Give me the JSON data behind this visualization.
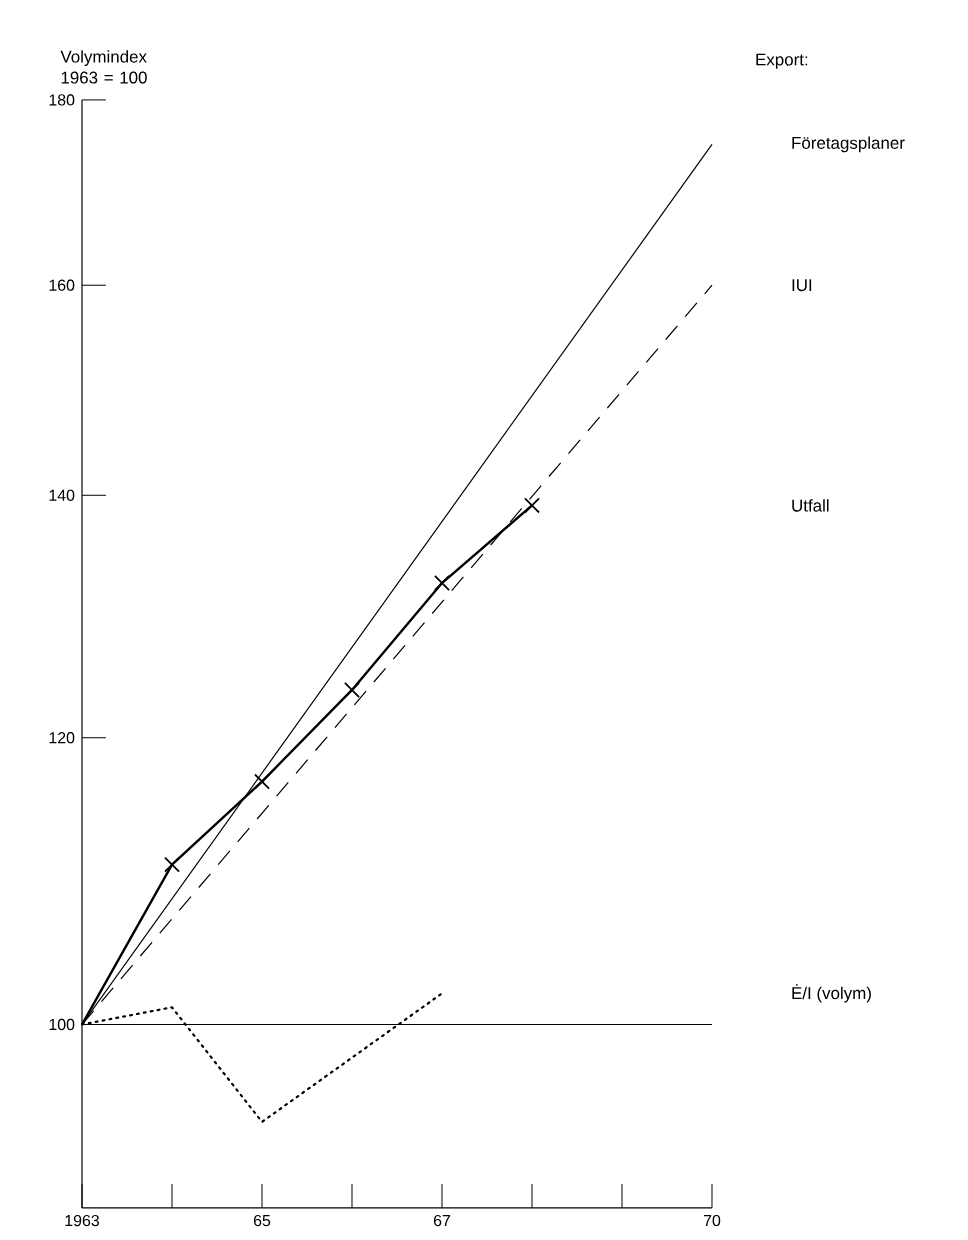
{
  "chart_data": {
    "type": "line",
    "ylabel": "Volymindex 1963 = 100",
    "log": "y",
    "annotations": [
      "Export:"
    ],
    "xlim": [
      1963,
      1970
    ],
    "xticks": [
      1963,
      {
        "value": 1964,
        "label": null
      },
      {
        "value": 1965,
        "label": "65"
      },
      {
        "value": 1966,
        "label": null
      },
      {
        "value": 1967,
        "label": "67"
      },
      {
        "value": 1968,
        "label": null
      },
      {
        "value": 1969,
        "label": null
      },
      {
        "value": 1970,
        "label": "70"
      }
    ],
    "ylim": [
      89,
      180
    ],
    "yticks": [
      100,
      120,
      140,
      160,
      180
    ],
    "ref_lines": [
      {
        "axis": "y",
        "value": 100
      }
    ],
    "series": [
      {
        "name": "Företagsplaner",
        "color": "#000000",
        "line_style": "solid",
        "marker": "none",
        "x": [
          1963,
          1970
        ],
        "values": [
          100,
          175
        ]
      },
      {
        "name": "IUI",
        "color": "#000000",
        "line_style": "dashed",
        "marker": "none",
        "x": [
          1963,
          1970
        ],
        "values": [
          100,
          160
        ]
      },
      {
        "name": "Utfall",
        "color": "#000000",
        "line_style": "solid",
        "marker": "cross",
        "x": [
          1963,
          1964,
          1965,
          1966,
          1967,
          1968
        ],
        "values": [
          100,
          110.7,
          116.7,
          123.7,
          132.4,
          139.1
        ]
      },
      {
        "name": "Ė/I (volym)",
        "color": "#000000",
        "line_style": "dotted",
        "marker": "none",
        "x": [
          1963,
          1964,
          1965,
          1967
        ],
        "values": [
          100,
          101.1,
          94.0,
          102.0
        ]
      }
    ]
  }
}
